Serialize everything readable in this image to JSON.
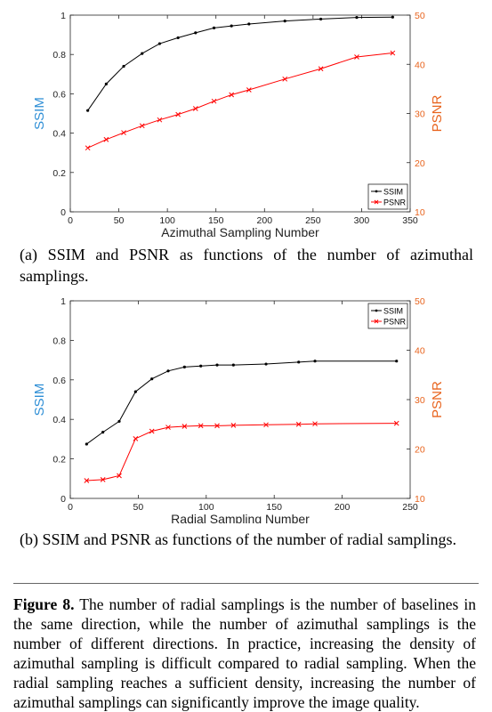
{
  "chart_data": [
    {
      "id": "a",
      "type": "line",
      "xlabel": "Azimuthal Sampling Number",
      "ylabel_left": "SSIM",
      "ylabel_right": "PSNR",
      "xlim": [
        0,
        350
      ],
      "ylim_left": [
        0,
        1
      ],
      "ylim_right": [
        10,
        50
      ],
      "xticks": [
        0,
        50,
        100,
        150,
        200,
        250,
        300,
        350
      ],
      "yticks_left": [
        0,
        0.2,
        0.4,
        0.6,
        0.8,
        1
      ],
      "yticks_right": [
        10,
        20,
        30,
        40,
        50
      ],
      "legend_position": "bottom-right",
      "grid": false,
      "series": [
        {
          "name": "SSIM",
          "axis": "left",
          "color": "#000000",
          "marker": "dot",
          "x": [
            18,
            37,
            55,
            74,
            92,
            111,
            129,
            148,
            166,
            184,
            221,
            258,
            295,
            332
          ],
          "y": [
            0.515,
            0.65,
            0.74,
            0.805,
            0.855,
            0.885,
            0.91,
            0.935,
            0.945,
            0.955,
            0.97,
            0.98,
            0.988,
            0.99
          ]
        },
        {
          "name": "PSNR",
          "axis": "right",
          "color": "#ff0000",
          "marker": "x",
          "x": [
            18,
            37,
            55,
            74,
            92,
            111,
            129,
            148,
            166,
            184,
            221,
            258,
            295,
            332
          ],
          "y": [
            23.0,
            24.7,
            26.1,
            27.5,
            28.7,
            29.8,
            31.0,
            32.5,
            33.8,
            34.8,
            37.0,
            39.1,
            41.5,
            42.3
          ]
        }
      ]
    },
    {
      "id": "b",
      "type": "line",
      "xlabel": "Radial Sampling Number",
      "ylabel_left": "SSIM",
      "ylabel_right": "PSNR",
      "xlim": [
        0,
        250
      ],
      "ylim_left": [
        0,
        1
      ],
      "ylim_right": [
        10,
        50
      ],
      "xticks": [
        0,
        50,
        100,
        150,
        200,
        250
      ],
      "yticks_left": [
        0,
        0.2,
        0.4,
        0.6,
        0.8,
        1
      ],
      "yticks_right": [
        10,
        20,
        30,
        40,
        50
      ],
      "legend_position": "top-right",
      "grid": false,
      "series": [
        {
          "name": "SSIM",
          "axis": "left",
          "color": "#000000",
          "marker": "dot",
          "x": [
            12,
            24,
            36,
            48,
            60,
            72,
            84,
            96,
            108,
            120,
            144,
            168,
            180,
            240
          ],
          "y": [
            0.275,
            0.335,
            0.39,
            0.54,
            0.605,
            0.645,
            0.665,
            0.67,
            0.675,
            0.675,
            0.68,
            0.69,
            0.695,
            0.695
          ]
        },
        {
          "name": "PSNR",
          "axis": "right",
          "color": "#ff0000",
          "marker": "x",
          "x": [
            12,
            24,
            36,
            48,
            60,
            72,
            84,
            96,
            108,
            120,
            144,
            168,
            180,
            240
          ],
          "y": [
            13.6,
            13.8,
            14.6,
            22.1,
            23.6,
            24.4,
            24.6,
            24.7,
            24.7,
            24.8,
            24.9,
            25.0,
            25.1,
            25.2
          ]
        }
      ]
    }
  ],
  "subcaptions": {
    "a": "(a) SSIM and PSNR as functions of the number of azimuthal samplings.",
    "b": "(b) SSIM and PSNR as functions of the number of radial samplings."
  },
  "figure_caption": {
    "label": "Figure 8.",
    "text": "The number of radial samplings is the number of baselines in the same direction, while the number of azimuthal samplings is the number of different directions. In practice, increasing the density of azimuthal sampling is difficult compared to radial sampling. When the radial sampling reaches a sufficient density, increasing the number of azimuthal samplings can significantly improve the image quality."
  },
  "colors": {
    "left_axis_label": "#2f8fd6",
    "right_axis_label": "#e8641e",
    "ssim_line": "#000000",
    "psnr_line": "#ff0000"
  }
}
